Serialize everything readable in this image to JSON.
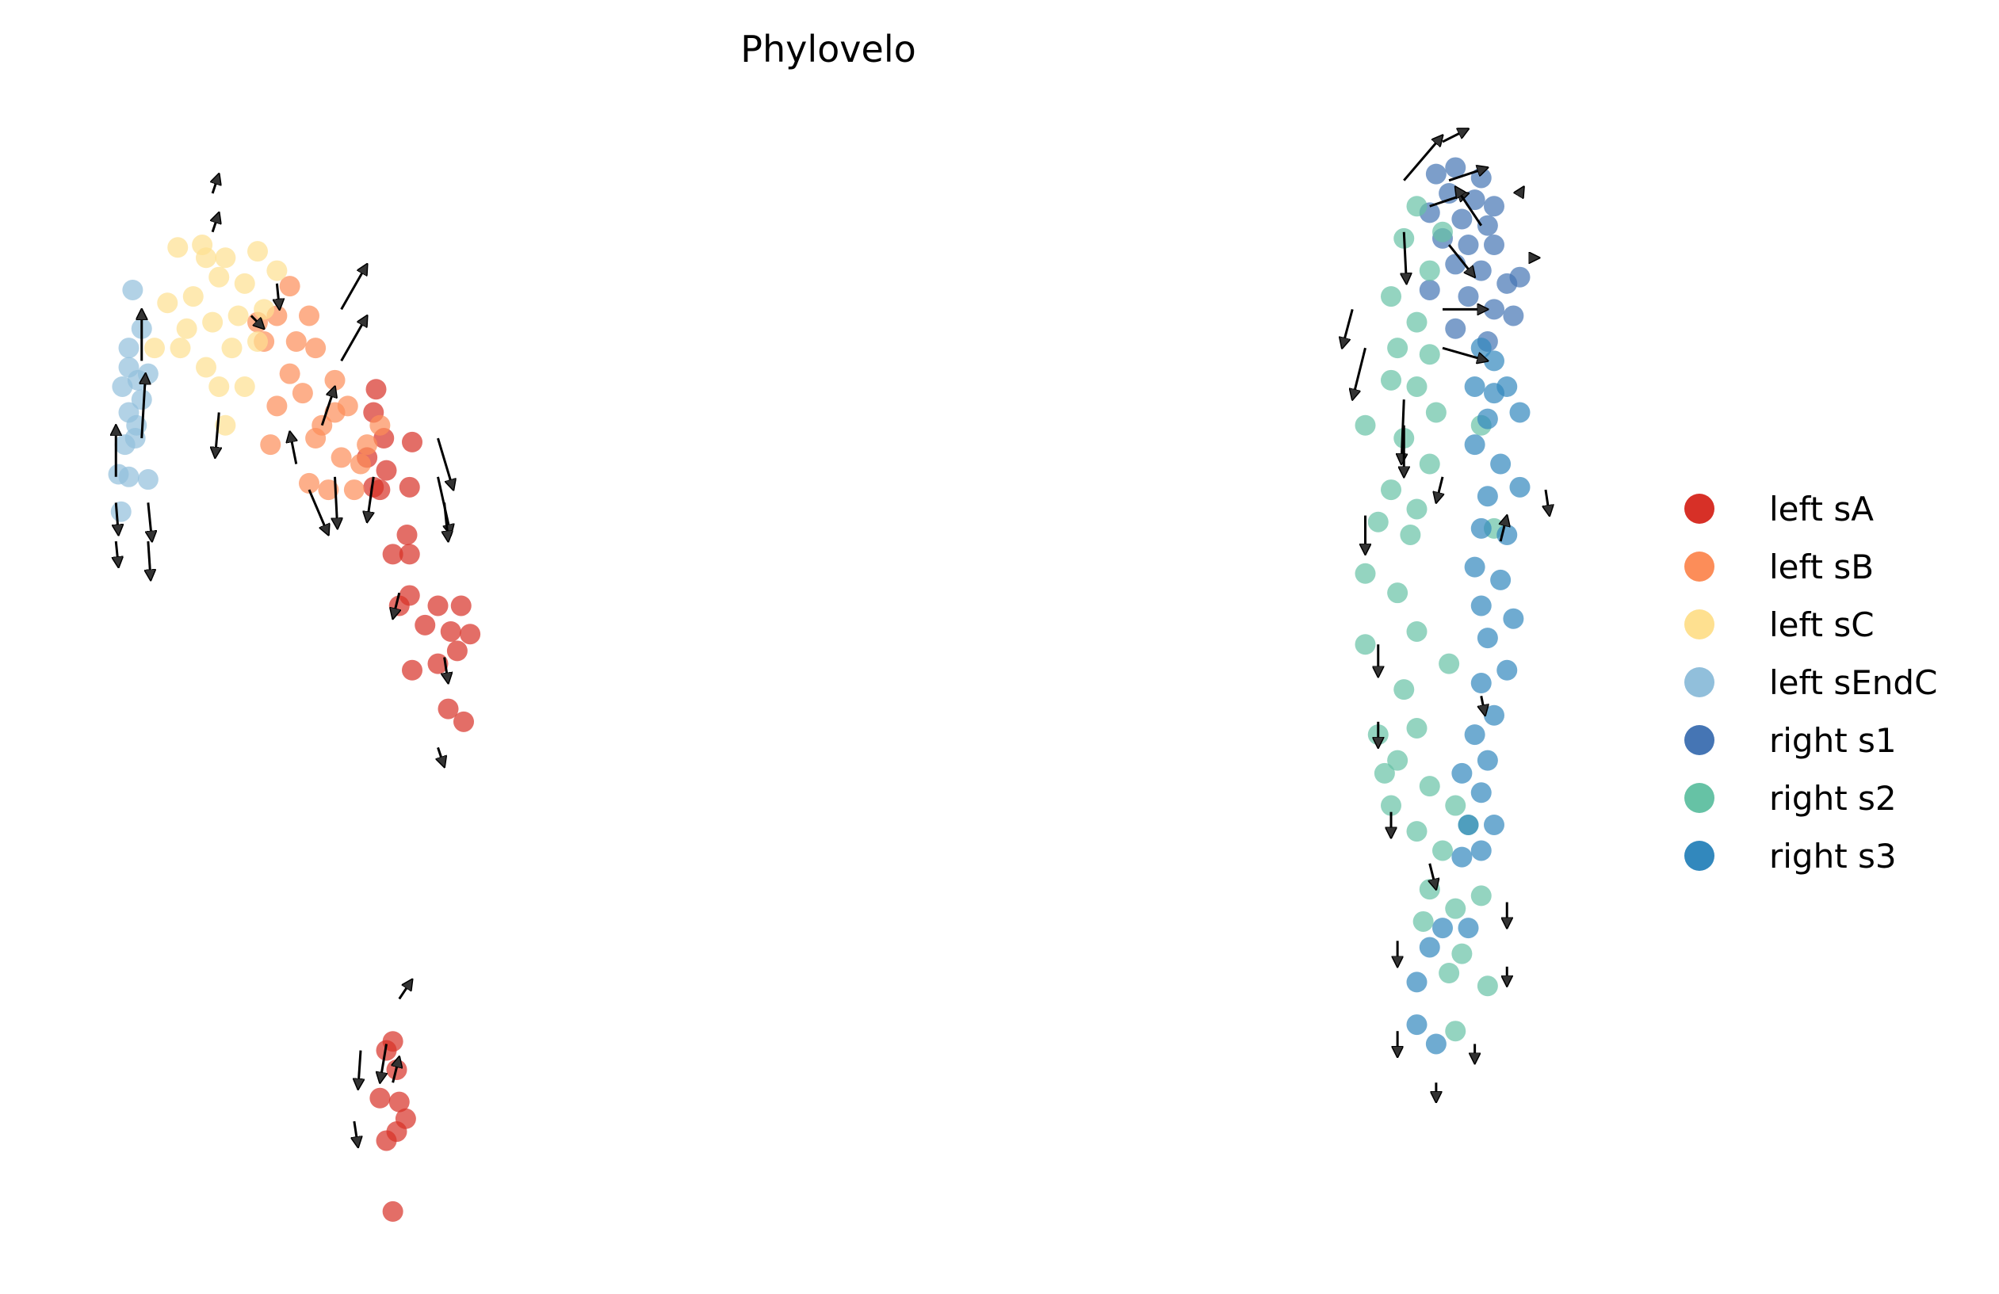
{
  "chart_data": {
    "type": "scatter",
    "title": "Phylovelo",
    "xlabel": "",
    "ylabel": "",
    "xlim": [
      -8,
      147.2
    ],
    "ylim": [
      -0.4,
      100
    ],
    "grid": false,
    "axes_visible": false,
    "legend_position": "right",
    "point_opacity": 0.7,
    "series": [
      {
        "name": "left sA",
        "color": "#d73027",
        "points": [
          [
            21.2,
            69.8
          ],
          [
            21,
            68
          ],
          [
            21.8,
            66
          ],
          [
            20.5,
            64.5
          ],
          [
            22,
            63.5
          ],
          [
            21,
            62.2
          ],
          [
            24,
            65.7
          ],
          [
            23.8,
            62.2
          ],
          [
            23.6,
            58.5
          ],
          [
            23.8,
            57
          ],
          [
            22.5,
            57
          ],
          [
            23.8,
            53.8
          ],
          [
            26,
            53
          ],
          [
            27.8,
            53
          ],
          [
            25,
            51.5
          ],
          [
            27,
            51
          ],
          [
            28.5,
            50.8
          ],
          [
            24,
            48
          ],
          [
            26,
            48.5
          ],
          [
            27.5,
            49.5
          ],
          [
            26.8,
            45
          ],
          [
            28,
            44
          ],
          [
            23,
            53
          ],
          [
            21.5,
            62
          ],
          [
            22.5,
            19.2
          ],
          [
            22,
            18.5
          ],
          [
            22.8,
            17
          ],
          [
            21.5,
            14.8
          ],
          [
            23,
            14.5
          ],
          [
            23.5,
            13.2
          ],
          [
            22,
            11.5
          ],
          [
            22.8,
            12.2
          ],
          [
            22.5,
            6
          ]
        ]
      },
      {
        "name": "left sB",
        "color": "#fc8d59",
        "points": [
          [
            14.5,
            77.8
          ],
          [
            13.5,
            75.5
          ],
          [
            12.5,
            73.5
          ],
          [
            16,
            75.5
          ],
          [
            16.5,
            73
          ],
          [
            14.5,
            71
          ],
          [
            13.5,
            68.5
          ],
          [
            15.5,
            69.5
          ],
          [
            18,
            70.5
          ],
          [
            17,
            67
          ],
          [
            19,
            68.5
          ],
          [
            16.5,
            66
          ],
          [
            18.5,
            64.5
          ],
          [
            20.5,
            65.5
          ],
          [
            19.5,
            62
          ],
          [
            16,
            62.5
          ],
          [
            13,
            65.5
          ],
          [
            17.5,
            62
          ],
          [
            21.5,
            67
          ],
          [
            15,
            73.5
          ],
          [
            12,
            75
          ],
          [
            18,
            68
          ],
          [
            20,
            64
          ]
        ]
      },
      {
        "name": "left sC",
        "color": "#fee090",
        "points": [
          [
            5.8,
            80.8
          ],
          [
            7.7,
            81
          ],
          [
            9.5,
            80
          ],
          [
            12,
            80.5
          ],
          [
            5,
            76.5
          ],
          [
            7,
            77
          ],
          [
            9,
            78.5
          ],
          [
            11,
            78
          ],
          [
            6.5,
            74.5
          ],
          [
            8.5,
            75
          ],
          [
            10.5,
            75.5
          ],
          [
            12.5,
            76
          ],
          [
            8,
            71.5
          ],
          [
            10,
            73
          ],
          [
            9,
            70
          ],
          [
            9.5,
            67
          ],
          [
            4,
            73
          ],
          [
            6,
            73
          ],
          [
            12,
            73.5
          ],
          [
            11,
            70
          ],
          [
            13.5,
            79
          ],
          [
            8,
            80
          ]
        ]
      },
      {
        "name": "left sEndC",
        "color": "#91bfdb",
        "points": [
          [
            2.3,
            77.5
          ],
          [
            3.0,
            74.5
          ],
          [
            2.0,
            73
          ],
          [
            2.7,
            70.5
          ],
          [
            1.5,
            70
          ],
          [
            3.5,
            71
          ],
          [
            2.0,
            68
          ],
          [
            3.0,
            69
          ],
          [
            1.7,
            65.5
          ],
          [
            2.5,
            66
          ],
          [
            1.2,
            63.2
          ],
          [
            3.5,
            62.8
          ],
          [
            2.0,
            63
          ],
          [
            1.4,
            60.3
          ],
          [
            2.0,
            71.5
          ],
          [
            2.6,
            67
          ]
        ]
      },
      {
        "name": "right s1",
        "color": "#4575b4",
        "points": [
          [
            103.5,
            86.5
          ],
          [
            105,
            87
          ],
          [
            107,
            86.2
          ],
          [
            104.5,
            85
          ],
          [
            106.5,
            84.5
          ],
          [
            108,
            84
          ],
          [
            103,
            83.5
          ],
          [
            105.5,
            83
          ],
          [
            107.5,
            82.5
          ],
          [
            104,
            81.5
          ],
          [
            106,
            81
          ],
          [
            108,
            81
          ],
          [
            105,
            79.5
          ],
          [
            107,
            79
          ],
          [
            109,
            78
          ],
          [
            110,
            78.5
          ],
          [
            106,
            77
          ],
          [
            108,
            76
          ],
          [
            105,
            74.5
          ],
          [
            107.5,
            73.5
          ],
          [
            109.5,
            75.5
          ],
          [
            103,
            77.5
          ]
        ]
      },
      {
        "name": "right s2",
        "color": "#66c2a5",
        "points": [
          [
            102,
            84
          ],
          [
            101,
            81.5
          ],
          [
            100,
            77
          ],
          [
            103,
            79
          ],
          [
            102,
            75
          ],
          [
            100.5,
            73
          ],
          [
            103,
            72.5
          ],
          [
            100,
            70.5
          ],
          [
            102,
            70
          ],
          [
            103.5,
            68
          ],
          [
            98,
            67
          ],
          [
            101,
            66
          ],
          [
            103,
            64
          ],
          [
            100,
            62
          ],
          [
            102,
            60.5
          ],
          [
            99,
            59.5
          ],
          [
            101.5,
            58.5
          ],
          [
            98,
            55.5
          ],
          [
            100.5,
            54
          ],
          [
            102,
            51
          ],
          [
            98,
            50
          ],
          [
            104.5,
            48.5
          ],
          [
            101,
            46.5
          ],
          [
            99,
            43
          ],
          [
            102,
            43.5
          ],
          [
            100.5,
            41
          ],
          [
            103,
            39
          ],
          [
            100,
            37.5
          ],
          [
            105,
            37.5
          ],
          [
            102,
            35.5
          ],
          [
            104,
            34
          ],
          [
            106,
            36
          ],
          [
            103,
            31
          ],
          [
            105,
            29.5
          ],
          [
            107,
            30.5
          ],
          [
            102.5,
            28.5
          ],
          [
            105.5,
            26
          ],
          [
            107.5,
            23.5
          ],
          [
            104.5,
            24.5
          ],
          [
            105,
            20
          ],
          [
            108,
            59
          ],
          [
            107,
            67
          ],
          [
            104,
            82
          ],
          [
            99.5,
            40
          ]
        ]
      },
      {
        "name": "right s3",
        "color": "#3288bd",
        "points": [
          [
            108,
            72
          ],
          [
            106.5,
            70
          ],
          [
            109,
            70
          ],
          [
            107.5,
            67.5
          ],
          [
            110,
            68
          ],
          [
            106.5,
            65.5
          ],
          [
            108.5,
            64
          ],
          [
            107.5,
            61.5
          ],
          [
            110,
            62.2
          ],
          [
            107,
            59
          ],
          [
            109,
            58.5
          ],
          [
            106.5,
            56
          ],
          [
            108.5,
            55
          ],
          [
            107,
            53
          ],
          [
            109.5,
            52
          ],
          [
            107.5,
            50.5
          ],
          [
            109,
            48
          ],
          [
            107,
            47
          ],
          [
            108,
            44.5
          ],
          [
            106.5,
            43
          ],
          [
            107.5,
            41
          ],
          [
            105.5,
            40
          ],
          [
            107,
            38.5
          ],
          [
            106,
            36
          ],
          [
            108,
            36
          ],
          [
            105.5,
            33.5
          ],
          [
            107,
            34
          ],
          [
            104,
            28
          ],
          [
            103,
            26.5
          ],
          [
            106,
            28
          ],
          [
            102,
            23.8
          ],
          [
            102,
            20.5
          ],
          [
            103.5,
            19
          ],
          [
            108,
            69.5
          ],
          [
            107,
            73
          ]
        ]
      }
    ],
    "velocity_arrows": [
      [
        1,
        63,
        0,
        4
      ],
      [
        3,
        66,
        0.3,
        5
      ],
      [
        3,
        72,
        0,
        4
      ],
      [
        8.5,
        85,
        0.5,
        1.5
      ],
      [
        8.5,
        82,
        0.5,
        1.5
      ],
      [
        11.5,
        75.5,
        1,
        -1
      ],
      [
        13.5,
        78,
        0.2,
        -2
      ],
      [
        3.5,
        61,
        0.3,
        -3
      ],
      [
        1,
        61,
        0.2,
        -2.5
      ],
      [
        3.5,
        58,
        0.2,
        -3
      ],
      [
        1,
        58,
        0.2,
        -2
      ],
      [
        18.5,
        76,
        2,
        3.5
      ],
      [
        18.5,
        72,
        2,
        3.5
      ],
      [
        17,
        67,
        1,
        3
      ],
      [
        15,
        64,
        -0.5,
        2.5
      ],
      [
        16,
        62,
        1.5,
        -3.5
      ],
      [
        18,
        63,
        0.2,
        -4
      ],
      [
        21,
        63,
        -0.5,
        -3.5
      ],
      [
        26,
        66,
        1.2,
        -4
      ],
      [
        26,
        63,
        1,
        -4.5
      ],
      [
        26.5,
        61,
        0.3,
        -3
      ],
      [
        23,
        54,
        -0.5,
        -2
      ],
      [
        26.5,
        49,
        0.3,
        -2
      ],
      [
        26,
        42,
        0.5,
        -1.5
      ],
      [
        23,
        22.5,
        1,
        1.5
      ],
      [
        22,
        19,
        -0.5,
        -3
      ],
      [
        20,
        18.5,
        -0.2,
        -3
      ],
      [
        22.5,
        16,
        0.5,
        2
      ],
      [
        19.5,
        13,
        0.3,
        -2
      ],
      [
        9,
        68,
        -0.3,
        -3.5
      ],
      [
        101,
        86,
        3,
        3.5
      ],
      [
        104,
        89,
        2,
        1
      ],
      [
        103,
        84,
        3,
        1
      ],
      [
        104.5,
        86,
        3,
        1
      ],
      [
        104.5,
        81,
        2,
        -2.5
      ],
      [
        104,
        76,
        3.5,
        0
      ],
      [
        104,
        73,
        3.5,
        -1
      ],
      [
        101,
        82,
        0.2,
        -4
      ],
      [
        98,
        73,
        -1,
        -4
      ],
      [
        97,
        76,
        -0.8,
        -3
      ],
      [
        101,
        69,
        -0.2,
        -5
      ],
      [
        101,
        67,
        0,
        -4
      ],
      [
        98,
        60,
        0,
        -3
      ],
      [
        99,
        50,
        0,
        -2.5
      ],
      [
        99,
        44,
        0,
        -2
      ],
      [
        100,
        37,
        0,
        -2
      ],
      [
        103,
        33,
        0.5,
        -2
      ],
      [
        100.5,
        27,
        0,
        -2
      ],
      [
        100.5,
        20,
        0,
        -2
      ],
      [
        103.5,
        16,
        0,
        -1.5
      ],
      [
        106.5,
        19,
        0,
        -1.5
      ],
      [
        109,
        25,
        0,
        -1.5
      ],
      [
        109,
        30,
        0,
        -2
      ],
      [
        111,
        80,
        0.5,
        0
      ],
      [
        110,
        85,
        0.3,
        0.5
      ],
      [
        112,
        62,
        0.3,
        -2
      ],
      [
        108.5,
        58,
        0.5,
        2
      ],
      [
        104,
        63,
        -0.5,
        -2
      ],
      [
        107,
        46,
        0.3,
        -1.5
      ],
      [
        107,
        82.5,
        -2,
        3
      ]
    ]
  }
}
